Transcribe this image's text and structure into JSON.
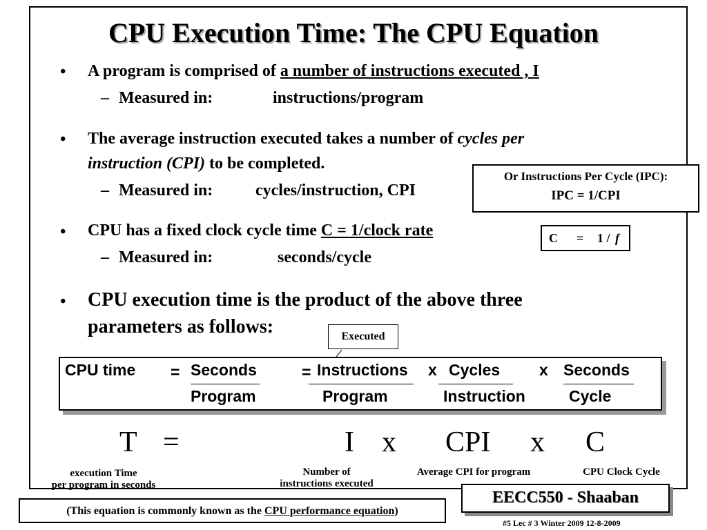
{
  "title": "CPU Execution Time: The CPU Equation",
  "bullets": {
    "b1": {
      "prefix": "A program is comprised of ",
      "underlined": "a number of instructions executed ,  I"
    },
    "b1_sub": {
      "label": "Measured in:",
      "value": "instructions/program"
    },
    "b2": {
      "prefix": "The average instruction executed takes a number of ",
      "italic1": "cycles per",
      "italic2": "instruction (CPI)",
      "suffix": " to be completed."
    },
    "b2_sub": {
      "label": "Measured in:",
      "value": "cycles/instruction,  CPI"
    },
    "b3": {
      "prefix": "CPU has a fixed clock cycle time  ",
      "underlined": "C  = 1/clock rate"
    },
    "b3_sub": {
      "label": "Measured in:",
      "value": "seconds/cycle"
    },
    "b4": {
      "line1": "CPU execution time is the product of the above three",
      "line2": "parameters as follows:"
    }
  },
  "bullet_symbol": "•",
  "sub_symbol": "–",
  "ipc_box": {
    "line1": "Or  Instructions Per Cycle (IPC):",
    "line2": "IPC =  1/CPI"
  },
  "c_box": {
    "c": "C",
    "eq": "=",
    "one": "1 /",
    "f": "f"
  },
  "executed_label": "Executed",
  "equation": {
    "lhs": "CPU time",
    "eq1": "=",
    "seconds_num": "Seconds",
    "program_den": "Program",
    "eq2": "=",
    "instr_num": "Instructions",
    "x1": "x",
    "program_den2": "Program",
    "cycles_num": "Cycles",
    "instr_den": "Instruction",
    "x2": "x",
    "seconds_num2": "Seconds",
    "cycle_den": "Cycle"
  },
  "big_eq": {
    "T": "T",
    "eq": "=",
    "I": "I",
    "x1": "x",
    "CPI": "CPI",
    "x2": "x",
    "C": "C"
  },
  "captions": {
    "t_line1": "execution Time",
    "t_line2": "per program in seconds",
    "i_line1": "Number of",
    "i_line2": "instructions executed",
    "cpi": "Average CPI for program",
    "c": "CPU Clock Cycle"
  },
  "note": {
    "prefix": "(This equation is commonly known as the ",
    "underlined": "CPU performance equation",
    "suffix": ")"
  },
  "badge": "EECC550 - Shaaban",
  "footer": "#5   Lec # 3    Winter 2009   12-8-2009"
}
